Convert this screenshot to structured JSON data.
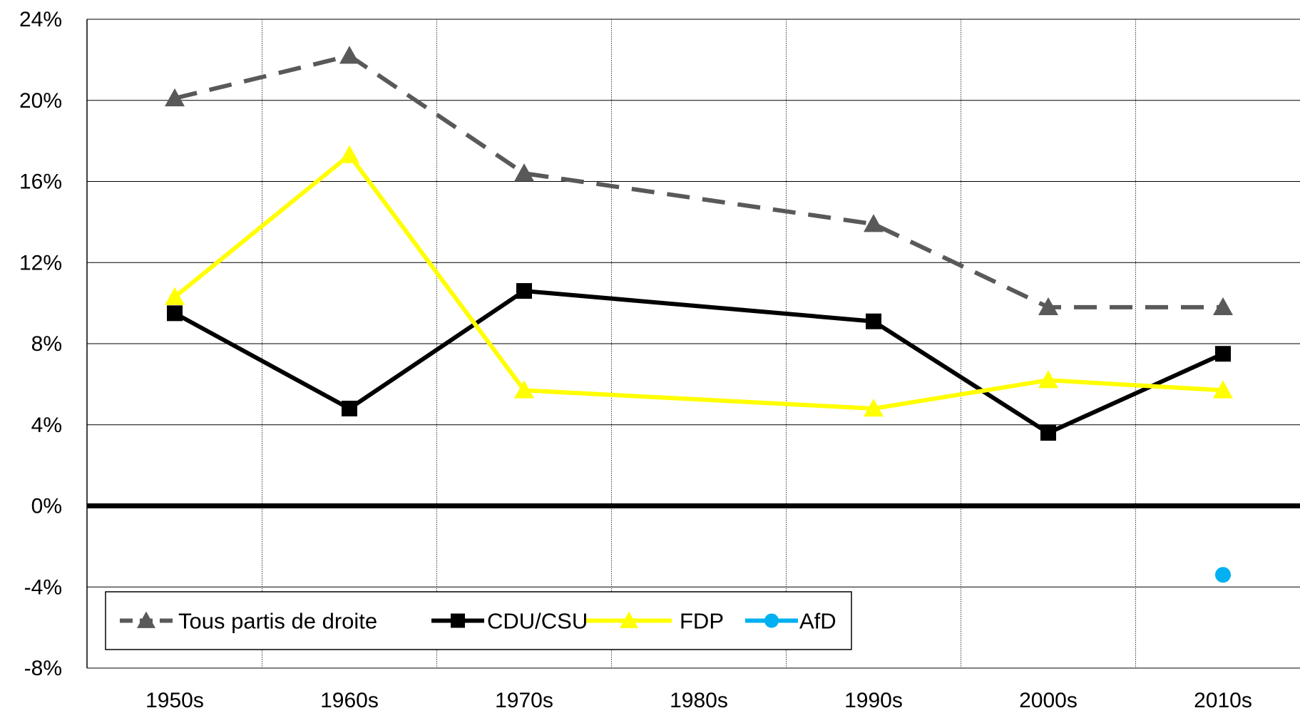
{
  "chart_data": {
    "type": "line",
    "title": "",
    "xlabel": "",
    "ylabel": "",
    "categories": [
      "1950s",
      "1960s",
      "1970s",
      "1980s",
      "1990s",
      "2000s",
      "2010s"
    ],
    "ylim": [
      -8,
      24
    ],
    "yticks": [
      -8,
      -4,
      0,
      4,
      8,
      12,
      16,
      20,
      24
    ],
    "ytick_labels": [
      "-8%",
      "-4%",
      "0%",
      "4%",
      "8%",
      "12%",
      "16%",
      "20%",
      "24%"
    ],
    "grid": true,
    "legend_position": "bottom-left",
    "series": [
      {
        "name": "Tous partis de droite",
        "color": "#595959",
        "dash": "dashed",
        "marker": "triangle",
        "values": [
          20.1,
          22.2,
          16.4,
          null,
          13.9,
          9.8,
          9.8
        ]
      },
      {
        "name": "CDU/CSU",
        "color": "#000000",
        "dash": "solid",
        "marker": "square",
        "values": [
          9.5,
          4.8,
          10.6,
          null,
          9.1,
          3.6,
          7.5
        ]
      },
      {
        "name": "FDP",
        "color": "#ffff00",
        "dash": "solid",
        "marker": "triangle",
        "values": [
          10.3,
          17.3,
          5.7,
          null,
          4.8,
          6.2,
          5.7
        ]
      },
      {
        "name": "AfD",
        "color": "#00b0f0",
        "dash": "solid",
        "marker": "circle",
        "values": [
          null,
          null,
          null,
          null,
          null,
          null,
          -3.4
        ]
      }
    ]
  }
}
